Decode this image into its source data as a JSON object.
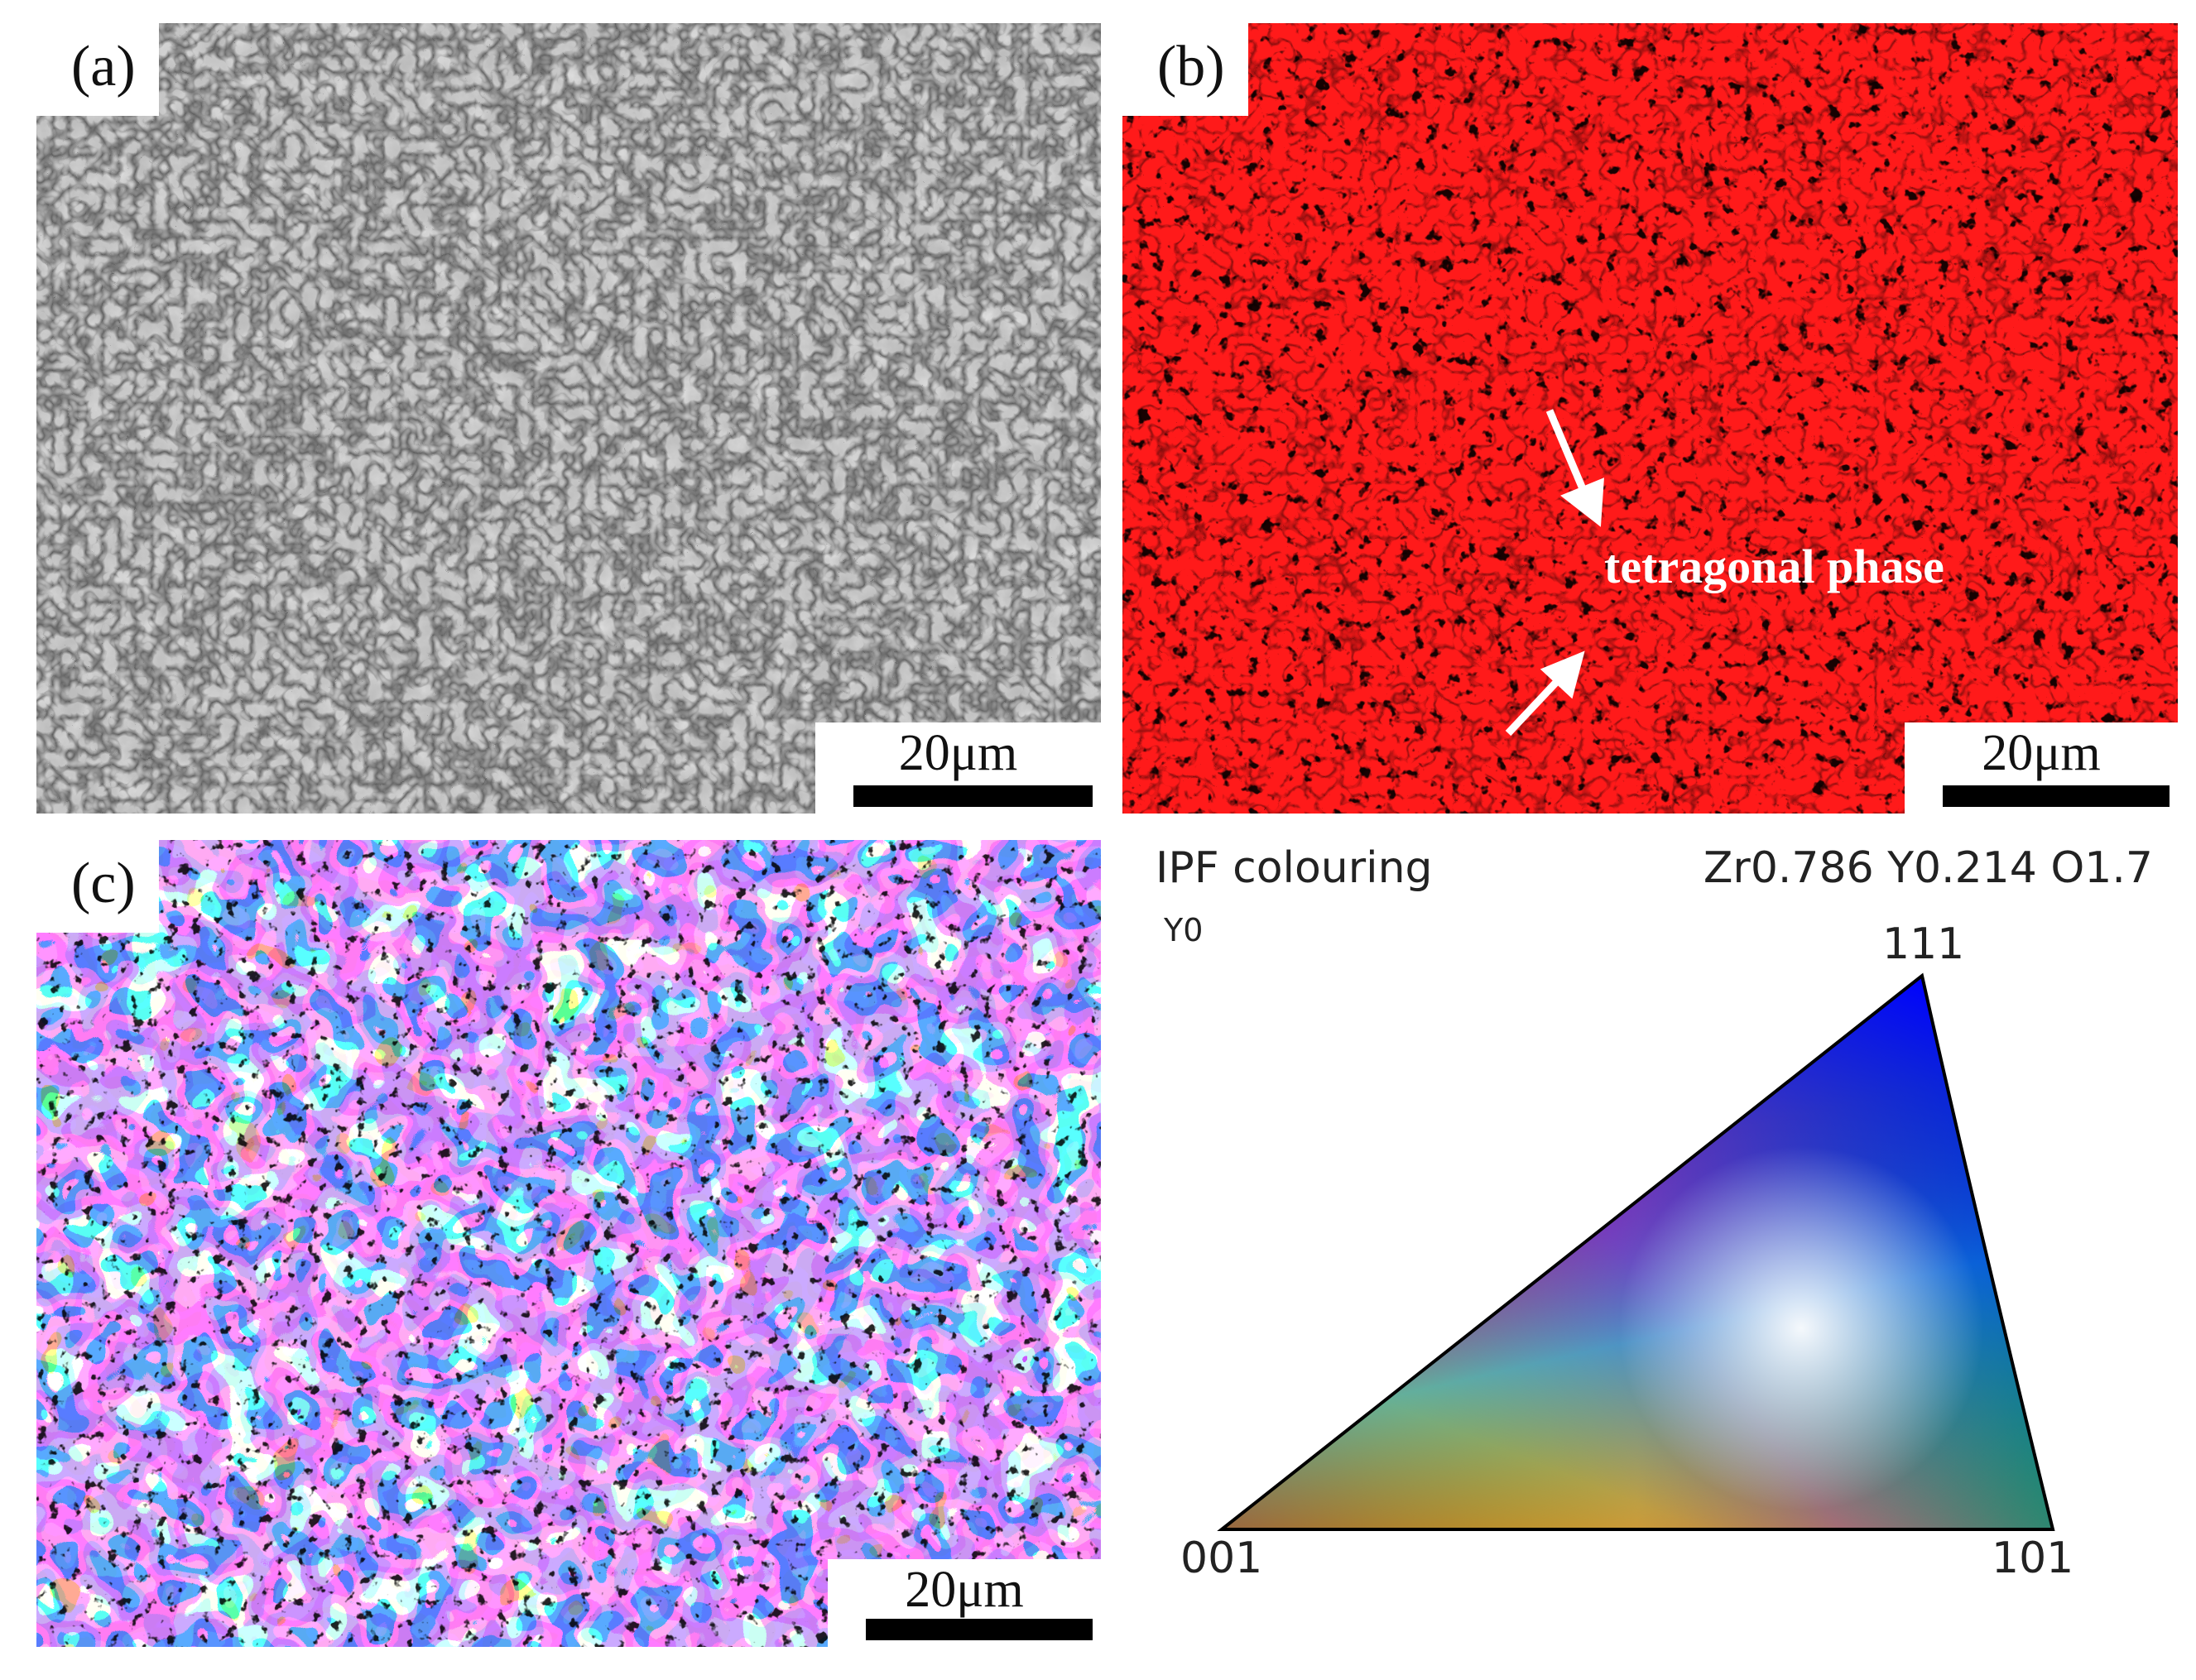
{
  "panels": {
    "a": {
      "label": "(a)",
      "scale_bar": "20μm"
    },
    "b": {
      "label": "(b)",
      "scale_bar": "20μm",
      "annotation": "tetragonal phase",
      "phase_color": "#ff1a1a"
    },
    "c": {
      "label": "(c)",
      "scale_bar": "20μm"
    }
  },
  "legend": {
    "title": "IPF colouring",
    "phase": "Zr0.786 Y0.214 O1.7",
    "direction": "Y0",
    "vertices": {
      "top": "111",
      "left": "001",
      "right": "101"
    },
    "colors": {
      "001": "#ff0000",
      "101": "#00ff00",
      "111": "#0000ff"
    }
  }
}
